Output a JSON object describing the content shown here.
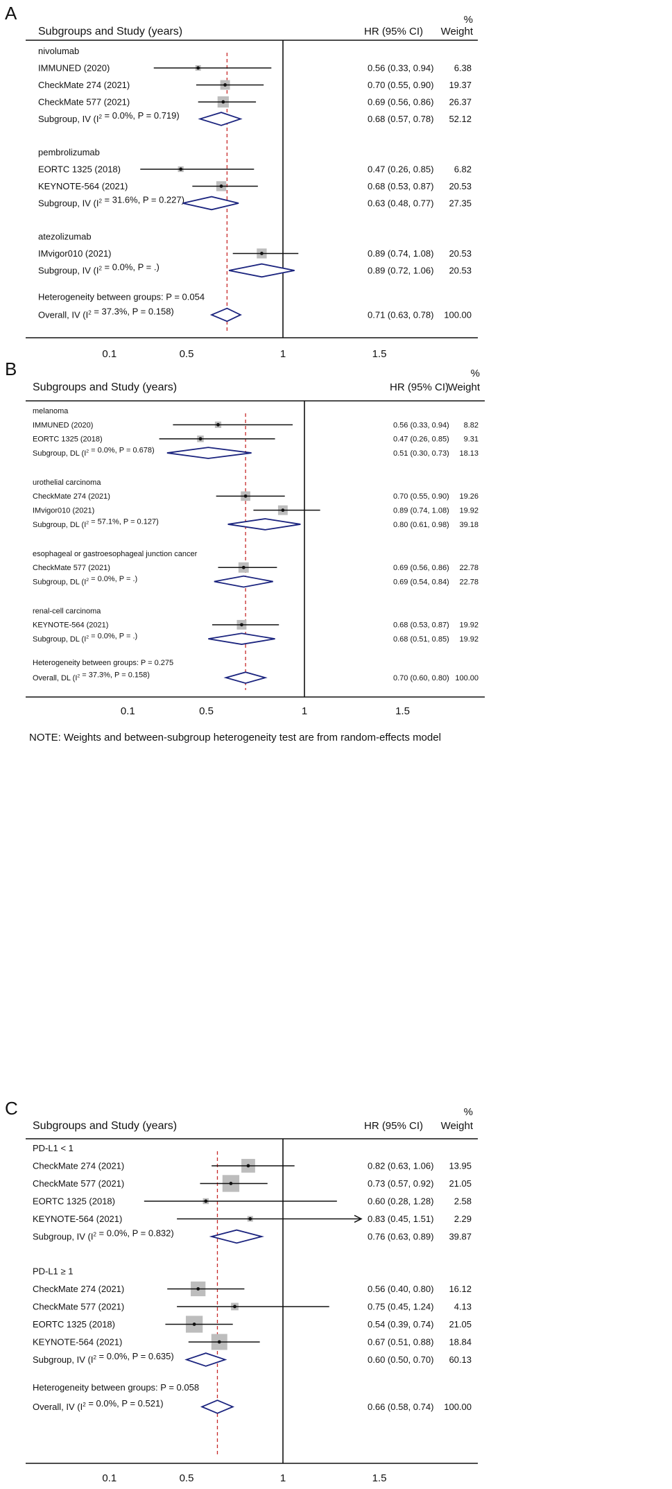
{
  "chart_data": [
    {
      "type": "forest",
      "panel_label": "A",
      "header": {
        "study": "Subgroups and Study (years)",
        "hr": "HR (95% CI)",
        "weight_pct": "%",
        "weight": "Weight"
      },
      "x_ticks": [
        "0.1",
        "0.5",
        "1",
        "1.5"
      ],
      "reference_line": 1,
      "overall_line": 0.71,
      "groups": [
        {
          "name": "nivolumab",
          "studies": [
            {
              "label": "IMMUNED (2020)",
              "hr": 0.56,
              "lo": 0.33,
              "hi": 0.94,
              "hr_text": "0.56 (0.33, 0.94)",
              "weight": "6.38"
            },
            {
              "label": "CheckMate 274 (2021)",
              "hr": 0.7,
              "lo": 0.55,
              "hi": 0.9,
              "hr_text": "0.70 (0.55, 0.90)",
              "weight": "19.37"
            },
            {
              "label": "CheckMate 577 (2021)",
              "hr": 0.69,
              "lo": 0.56,
              "hi": 0.86,
              "hr_text": "0.69 (0.56, 0.86)",
              "weight": "26.37"
            }
          ],
          "subtotal": {
            "label": "Subgroup, IV (I² = 0.0%, P = 0.719)",
            "hr": 0.68,
            "lo": 0.57,
            "hi": 0.78,
            "hr_text": "0.68 (0.57, 0.78)",
            "weight": "52.12"
          }
        },
        {
          "name": "pembrolizumab",
          "studies": [
            {
              "label": "EORTC 1325 (2018)",
              "hr": 0.47,
              "lo": 0.26,
              "hi": 0.85,
              "hr_text": "0.47 (0.26, 0.85)",
              "weight": "6.82"
            },
            {
              "label": "KEYNOTE-564 (2021)",
              "hr": 0.68,
              "lo": 0.53,
              "hi": 0.87,
              "hr_text": "0.68 (0.53, 0.87)",
              "weight": "20.53"
            }
          ],
          "subtotal": {
            "label": "Subgroup, IV (I² = 31.6%, P = 0.227)",
            "hr": 0.63,
            "lo": 0.48,
            "hi": 0.77,
            "hr_text": "0.63 (0.48, 0.77)",
            "weight": "27.35"
          }
        },
        {
          "name": "atezolizumab",
          "studies": [
            {
              "label": "IMvigor010 (2021)",
              "hr": 0.89,
              "lo": 0.74,
              "hi": 1.08,
              "hr_text": "0.89 (0.74, 1.08)",
              "weight": "20.53"
            }
          ],
          "subtotal": {
            "label": "Subgroup, IV (I² = 0.0%, P = .)",
            "hr": 0.89,
            "lo": 0.72,
            "hi": 1.06,
            "hr_text": "0.89 (0.72, 1.06)",
            "weight": "20.53"
          }
        }
      ],
      "heterogeneity": "Heterogeneity between groups: P = 0.054",
      "overall": {
        "label": "Overall, IV (I² = 37.3%, P = 0.158)",
        "hr": 0.71,
        "lo": 0.63,
        "hi": 0.78,
        "hr_text": "0.71 (0.63, 0.78)",
        "weight": "100.00"
      }
    },
    {
      "type": "forest",
      "panel_label": "B",
      "header": {
        "study": "Subgroups and Study (years)",
        "hr": "HR (95% CI)",
        "weight_pct": "%",
        "weight": "Weight"
      },
      "x_ticks": [
        "0.1",
        "0.5",
        "1",
        "1.5"
      ],
      "reference_line": 1,
      "overall_line": 0.7,
      "groups": [
        {
          "name": "melanoma",
          "studies": [
            {
              "label": "IMMUNED (2020)",
              "hr": 0.56,
              "lo": 0.33,
              "hi": 0.94,
              "hr_text": "0.56 (0.33, 0.94)",
              "weight": "8.82"
            },
            {
              "label": "EORTC 1325 (2018)",
              "hr": 0.47,
              "lo": 0.26,
              "hi": 0.85,
              "hr_text": "0.47 (0.26, 0.85)",
              "weight": "9.31"
            }
          ],
          "subtotal": {
            "label": "Subgroup, DL (I² = 0.0%, P = 0.678)",
            "hr": 0.51,
            "lo": 0.3,
            "hi": 0.73,
            "hr_text": "0.51 (0.30, 0.73)",
            "weight": "18.13"
          }
        },
        {
          "name": "urothelial carcinoma",
          "studies": [
            {
              "label": "CheckMate 274 (2021)",
              "hr": 0.7,
              "lo": 0.55,
              "hi": 0.9,
              "hr_text": "0.70 (0.55, 0.90)",
              "weight": "19.26"
            },
            {
              "label": "IMvigor010 (2021)",
              "hr": 0.89,
              "lo": 0.74,
              "hi": 1.08,
              "hr_text": "0.89 (0.74, 1.08)",
              "weight": "19.92"
            }
          ],
          "subtotal": {
            "label": "Subgroup, DL (I² = 57.1%, P = 0.127)",
            "hr": 0.8,
            "lo": 0.61,
            "hi": 0.98,
            "hr_text": "0.80 (0.61, 0.98)",
            "weight": "39.18"
          }
        },
        {
          "name": "esophageal or gastroesophageal junction cancer",
          "studies": [
            {
              "label": "CheckMate 577 (2021)",
              "hr": 0.69,
              "lo": 0.56,
              "hi": 0.86,
              "hr_text": "0.69 (0.56, 0.86)",
              "weight": "22.78"
            }
          ],
          "subtotal": {
            "label": "Subgroup, DL (I² = 0.0%, P = .)",
            "hr": 0.69,
            "lo": 0.54,
            "hi": 0.84,
            "hr_text": "0.69 (0.54, 0.84)",
            "weight": "22.78"
          }
        },
        {
          "name": "renal-cell carcinoma",
          "studies": [
            {
              "label": "KEYNOTE-564 (2021)",
              "hr": 0.68,
              "lo": 0.53,
              "hi": 0.87,
              "hr_text": "0.68 (0.53, 0.87)",
              "weight": "19.92"
            }
          ],
          "subtotal": {
            "label": "Subgroup, DL (I² = 0.0%, P = .)",
            "hr": 0.68,
            "lo": 0.51,
            "hi": 0.85,
            "hr_text": "0.68 (0.51, 0.85)",
            "weight": "19.92"
          }
        }
      ],
      "heterogeneity": "Heterogeneity between groups: P = 0.275",
      "overall": {
        "label": "Overall, DL (I² = 37.3%, P = 0.158)",
        "hr": 0.7,
        "lo": 0.6,
        "hi": 0.8,
        "hr_text": "0.70 (0.60, 0.80)",
        "weight": "100.00"
      },
      "note": "NOTE: Weights and between-subgroup heterogeneity test are from random-effects model"
    },
    {
      "type": "forest",
      "panel_label": "C",
      "header": {
        "study": "Subgroups and Study (years)",
        "hr": "HR (95% CI)",
        "weight_pct": "%",
        "weight": "Weight"
      },
      "x_ticks": [
        "0.1",
        "0.5",
        "1",
        "1.5"
      ],
      "reference_line": 1,
      "overall_line": 0.66,
      "groups": [
        {
          "name": "PD-L1 < 1",
          "studies": [
            {
              "label": "CheckMate 274 (2021)",
              "hr": 0.82,
              "lo": 0.63,
              "hi": 1.06,
              "hr_text": "0.82 (0.63, 1.06)",
              "weight": "13.95"
            },
            {
              "label": "CheckMate 577 (2021)",
              "hr": 0.73,
              "lo": 0.57,
              "hi": 0.92,
              "hr_text": "0.73 (0.57, 0.92)",
              "weight": "21.05"
            },
            {
              "label": "EORTC 1325 (2018)",
              "hr": 0.6,
              "lo": 0.28,
              "hi": 1.28,
              "hr_text": "0.60 (0.28, 1.28)",
              "weight": "2.58"
            },
            {
              "label": "KEYNOTE-564 (2021)",
              "hr": 0.83,
              "lo": 0.45,
              "hi": 1.51,
              "hr_text": "0.83 (0.45, 1.51)",
              "weight": "2.29"
            }
          ],
          "subtotal": {
            "label": "Subgroup, IV (I² = 0.0%, P = 0.832)",
            "hr": 0.76,
            "lo": 0.63,
            "hi": 0.89,
            "hr_text": "0.76 (0.63, 0.89)",
            "weight": "39.87"
          }
        },
        {
          "name": "PD-L1 ≥ 1",
          "studies": [
            {
              "label": "CheckMate 274 (2021)",
              "hr": 0.56,
              "lo": 0.4,
              "hi": 0.8,
              "hr_text": "0.56 (0.40, 0.80)",
              "weight": "16.12"
            },
            {
              "label": "CheckMate 577 (2021)",
              "hr": 0.75,
              "lo": 0.45,
              "hi": 1.24,
              "hr_text": "0.75 (0.45, 1.24)",
              "weight": "4.13"
            },
            {
              "label": "EORTC 1325 (2018)",
              "hr": 0.54,
              "lo": 0.39,
              "hi": 0.74,
              "hr_text": "0.54 (0.39, 0.74)",
              "weight": "21.05"
            },
            {
              "label": "KEYNOTE-564 (2021)",
              "hr": 0.67,
              "lo": 0.51,
              "hi": 0.88,
              "hr_text": "0.67 (0.51, 0.88)",
              "weight": "18.84"
            }
          ],
          "subtotal": {
            "label": "Subgroup, IV (I² = 0.0%, P = 0.635)",
            "hr": 0.6,
            "lo": 0.5,
            "hi": 0.7,
            "hr_text": "0.60 (0.50, 0.70)",
            "weight": "60.13"
          }
        }
      ],
      "heterogeneity": "Heterogeneity between groups: P = 0.058",
      "overall": {
        "label": "Overall, IV (I² = 0.0%, P = 0.521)",
        "hr": 0.66,
        "lo": 0.58,
        "hi": 0.74,
        "hr_text": "0.66 (0.58, 0.74)",
        "weight": "100.00"
      }
    }
  ],
  "colors": {
    "diamond": "#1a237e",
    "overall_line": "#c62828",
    "box": "#bdbdbd",
    "line": "#111111"
  }
}
